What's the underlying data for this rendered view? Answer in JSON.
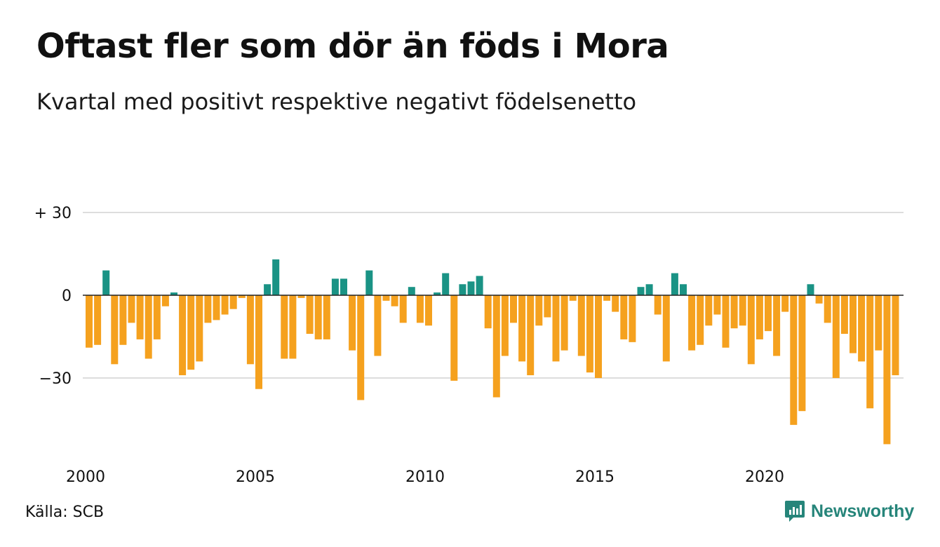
{
  "header": {
    "title": "Oftast fler som dör än föds i Mora",
    "subtitle": "Kvartal med positivt respektive negativt födelsenetto"
  },
  "footer": {
    "source": "Källa: SCB",
    "brand": "Newsworthy"
  },
  "colors": {
    "positive": "#1a9385",
    "negative": "#f5a11e",
    "grid": "#dddddd",
    "baseline": "#222222",
    "brand": "#26857a"
  },
  "chart_data": {
    "type": "bar",
    "title": "Oftast fler som dör än föds i Mora",
    "subtitle": "Kvartal med positivt respektive negativt födelsenetto",
    "xlabel": "",
    "ylabel": "",
    "ylim": [
      -55,
      30
    ],
    "yticks": [
      {
        "value": 30,
        "label": "+ 30"
      },
      {
        "value": 0,
        "label": "0"
      },
      {
        "value": -30,
        "label": "−30"
      }
    ],
    "xticks": [
      {
        "value": 2000,
        "label": "2000"
      },
      {
        "value": 2005,
        "label": "2005"
      },
      {
        "value": 2010,
        "label": "2010"
      },
      {
        "value": 2015,
        "label": "2015"
      },
      {
        "value": 2020,
        "label": "2020"
      }
    ],
    "grid": true,
    "categories": [
      "2000 K1",
      "2000 K2",
      "2000 K3",
      "2000 K4",
      "2001 K1",
      "2001 K2",
      "2001 K3",
      "2001 K4",
      "2002 K1",
      "2002 K2",
      "2002 K3",
      "2002 K4",
      "2003 K1",
      "2003 K2",
      "2003 K3",
      "2003 K4",
      "2004 K1",
      "2004 K2",
      "2004 K3",
      "2004 K4",
      "2005 K1",
      "2005 K2",
      "2005 K3",
      "2005 K4",
      "2006 K1",
      "2006 K2",
      "2006 K3",
      "2006 K4",
      "2007 K1",
      "2007 K2",
      "2007 K3",
      "2007 K4",
      "2008 K1",
      "2008 K2",
      "2008 K3",
      "2008 K4",
      "2009 K1",
      "2009 K2",
      "2009 K3",
      "2009 K4",
      "2010 K1",
      "2010 K2",
      "2010 K3",
      "2010 K4",
      "2011 K1",
      "2011 K2",
      "2011 K3",
      "2011 K4",
      "2012 K1",
      "2012 K2",
      "2012 K3",
      "2012 K4",
      "2013 K1",
      "2013 K2",
      "2013 K3",
      "2013 K4",
      "2014 K1",
      "2014 K2",
      "2014 K3",
      "2014 K4",
      "2015 K1",
      "2015 K2",
      "2015 K3",
      "2015 K4",
      "2016 K1",
      "2016 K2",
      "2016 K3",
      "2016 K4",
      "2017 K1",
      "2017 K2",
      "2017 K3",
      "2017 K4",
      "2018 K1",
      "2018 K2",
      "2018 K3",
      "2018 K4",
      "2019 K1",
      "2019 K2",
      "2019 K3",
      "2019 K4",
      "2020 K1",
      "2020 K2",
      "2020 K3",
      "2020 K4",
      "2021 K1",
      "2021 K2",
      "2021 K3",
      "2021 K4",
      "2022 K1",
      "2022 K2",
      "2022 K3",
      "2022 K4",
      "2023 K1",
      "2023 K2",
      "2023 K3",
      "2023 K4"
    ],
    "values": [
      -19,
      -18,
      9,
      -25,
      -18,
      -10,
      -16,
      -23,
      -16,
      -4,
      1,
      -29,
      -27,
      -24,
      -10,
      -9,
      -7,
      -5,
      -1,
      -25,
      -34,
      4,
      13,
      -23,
      -23,
      -1,
      -14,
      -16,
      -16,
      6,
      6,
      -20,
      -38,
      9,
      -22,
      -2,
      -4,
      -10,
      3,
      -10,
      -11,
      1,
      8,
      -31,
      4,
      5,
      7,
      -12,
      -37,
      -22,
      -10,
      -24,
      -29,
      -11,
      -8,
      -24,
      -20,
      -2,
      -22,
      -28,
      -30,
      -2,
      -6,
      -16,
      -17,
      3,
      4,
      -7,
      -24,
      8,
      4,
      -20,
      -18,
      -11,
      -7,
      -19,
      -12,
      -11,
      -25,
      -16,
      -13,
      -22,
      -6,
      -47,
      -42,
      4,
      -3,
      -10,
      -30,
      -14,
      -21,
      -24,
      -41,
      -20,
      -54,
      -29
    ]
  }
}
